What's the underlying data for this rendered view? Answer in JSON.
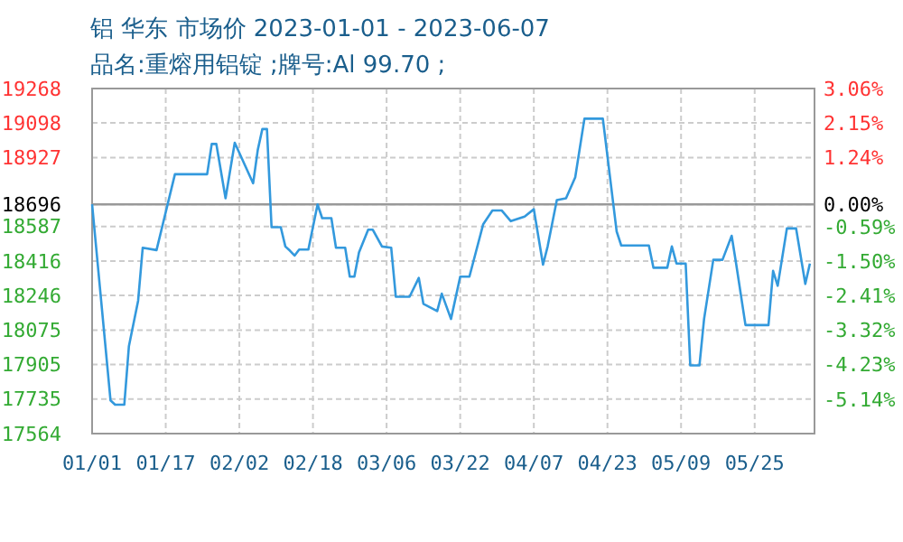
{
  "chart_data": {
    "type": "line",
    "title": "铝 华东 市场价 2023-01-01 - 2023-06-07",
    "subtitle": "品名:重熔用铝锭 ;牌号:Al 99.70 ;",
    "x": [
      "2023-01-01",
      "2023-01-05",
      "2023-01-06",
      "2023-01-08",
      "2023-01-09",
      "2023-01-11",
      "2023-01-12",
      "2023-01-15",
      "2023-01-19",
      "2023-01-26",
      "2023-01-27",
      "2023-01-28",
      "2023-01-30",
      "2023-02-01",
      "2023-02-02",
      "2023-02-05",
      "2023-02-06",
      "2023-02-07",
      "2023-02-08",
      "2023-02-09",
      "2023-02-11",
      "2023-02-12",
      "2023-02-13",
      "2023-02-14",
      "2023-02-15",
      "2023-02-17",
      "2023-02-19",
      "2023-02-20",
      "2023-02-22",
      "2023-02-23",
      "2023-02-25",
      "2023-02-26",
      "2023-02-27",
      "2023-02-28",
      "2023-03-02",
      "2023-03-03",
      "2023-03-05",
      "2023-03-07",
      "2023-03-08",
      "2023-03-11",
      "2023-03-13",
      "2023-03-14",
      "2023-03-17",
      "2023-03-18",
      "2023-03-20",
      "2023-03-22",
      "2023-03-24",
      "2023-03-27",
      "2023-03-29",
      "2023-03-31",
      "2023-04-02",
      "2023-04-05",
      "2023-04-07",
      "2023-04-09",
      "2023-04-10",
      "2023-04-12",
      "2023-04-14",
      "2023-04-16",
      "2023-04-18",
      "2023-04-22",
      "2023-04-23",
      "2023-04-25",
      "2023-04-26",
      "2023-05-02",
      "2023-05-03",
      "2023-05-06",
      "2023-05-07",
      "2023-05-08",
      "2023-05-10",
      "2023-05-11",
      "2023-05-13",
      "2023-05-14",
      "2023-05-16",
      "2023-05-18",
      "2023-05-20",
      "2023-05-21",
      "2023-05-23",
      "2023-05-28",
      "2023-05-29",
      "2023-05-30",
      "2023-06-01",
      "2023-06-03",
      "2023-06-05",
      "2023-06-06"
    ],
    "series": [
      {
        "color": "#3399dd",
        "values": [
          18696,
          17728,
          17707,
          17707,
          17996,
          18220,
          18482,
          18470,
          18845,
          18845,
          18994,
          18994,
          18726,
          19000,
          18950,
          18800,
          18964,
          19068,
          19068,
          18583,
          18583,
          18488,
          18467,
          18443,
          18473,
          18473,
          18696,
          18628,
          18628,
          18482,
          18482,
          18339,
          18339,
          18458,
          18571,
          18571,
          18488,
          18482,
          18240,
          18240,
          18333,
          18205,
          18169,
          18255,
          18130,
          18339,
          18339,
          18598,
          18666,
          18666,
          18613,
          18636,
          18672,
          18398,
          18488,
          18717,
          18726,
          18830,
          19119,
          19119,
          18934,
          18562,
          18493,
          18493,
          18383,
          18383,
          18488,
          18404,
          18404,
          17901,
          17901,
          18130,
          18422,
          18422,
          18541,
          18398,
          18100,
          18100,
          18368,
          18294,
          18577,
          18577,
          18303,
          18404
        ]
      }
    ],
    "xlim": [
      "2023-01-01",
      "2023-06-07"
    ],
    "xticks": [
      {
        "value": "2023-01-01",
        "label": "01/01"
      },
      {
        "value": "2023-01-17",
        "label": "01/17"
      },
      {
        "value": "2023-02-02",
        "label": "02/02"
      },
      {
        "value": "2023-02-18",
        "label": "02/18"
      },
      {
        "value": "2023-03-06",
        "label": "03/06"
      },
      {
        "value": "2023-03-22",
        "label": "03/22"
      },
      {
        "value": "2023-04-07",
        "label": "04/07"
      },
      {
        "value": "2023-04-23",
        "label": "04/23"
      },
      {
        "value": "2023-05-09",
        "label": "05/09"
      },
      {
        "value": "2023-05-25",
        "label": "05/25"
      }
    ],
    "ylim": [
      17564,
      19268
    ],
    "yticks": [
      17564,
      17735,
      17905,
      18075,
      18246,
      18416,
      18587,
      18696,
      18927,
      19098,
      19268
    ],
    "y2lim": [
      -6.05,
      3.06
    ],
    "y2ticks": [
      {
        "value": -5.14,
        "label": "-5.14%"
      },
      {
        "value": -4.23,
        "label": "-4.23%"
      },
      {
        "value": -3.32,
        "label": "-3.32%"
      },
      {
        "value": -2.41,
        "label": "-2.41%"
      },
      {
        "value": -1.5,
        "label": "-1.50%"
      },
      {
        "value": -0.59,
        "label": "-0.59%"
      },
      {
        "value": 0,
        "label": "0.00%"
      },
      {
        "value": 1.24,
        "label": "1.24%"
      },
      {
        "value": 2.15,
        "label": "2.15%"
      },
      {
        "value": 3.06,
        "label": "3.06%"
      }
    ],
    "ref_lines": [
      {
        "axis": "y",
        "value": 18696,
        "color": "#999999"
      }
    ],
    "grid": true,
    "marker": "none",
    "line_style": "solid"
  }
}
